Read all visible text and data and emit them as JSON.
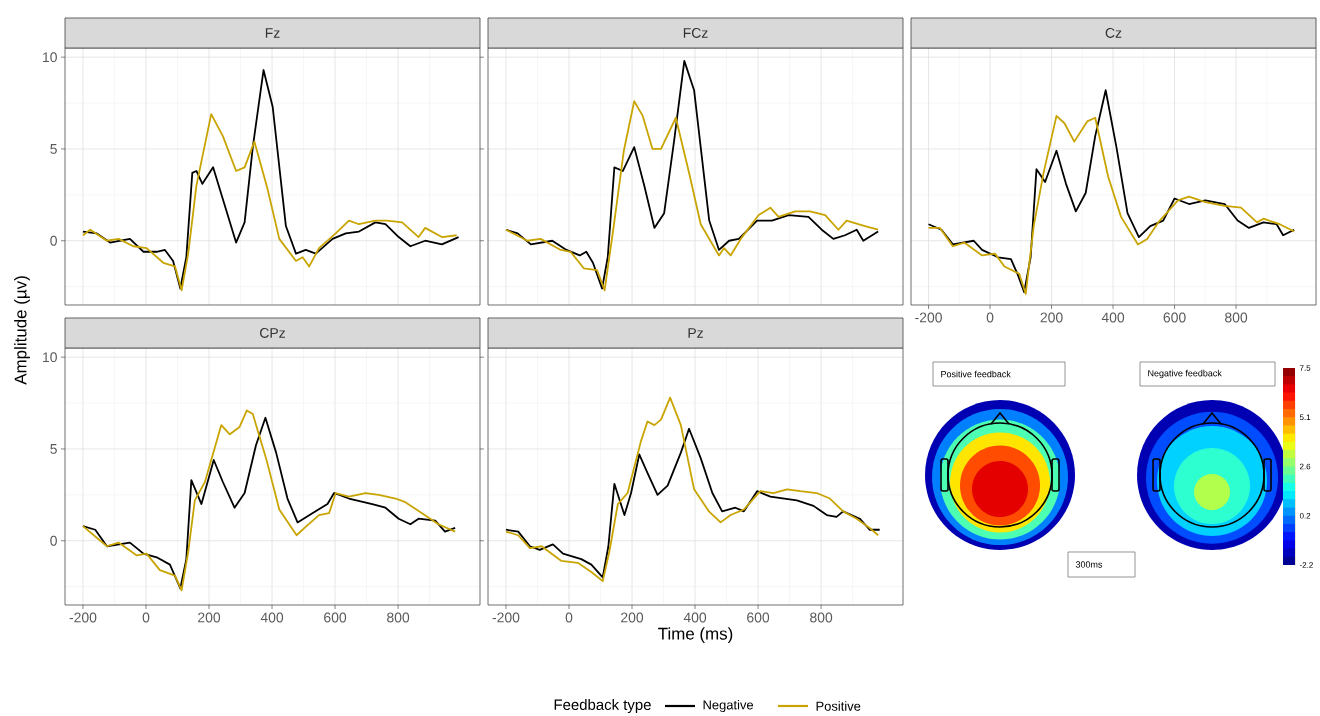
{
  "chart_data": [
    {
      "type": "line",
      "title": "Fz",
      "ylabel": "Amplitude (µv)",
      "legend_title": "Feedback type",
      "legend": "bottom",
      "grid": true,
      "tick_labels": "y",
      "xlim": [
        -257,
        1060
      ],
      "ylim": [
        -3.5,
        10.5
      ],
      "xticks": [
        -200,
        0,
        200,
        400,
        600,
        800
      ],
      "yticks": [
        0,
        5,
        10
      ],
      "series": [
        {
          "name": "Negative",
          "color": "#000000",
          "x": [
            -200,
            -156,
            -114,
            -51,
            -8,
            34,
            60,
            86,
            109,
            128,
            147,
            160,
            179,
            213,
            245,
            286,
            313,
            339,
            373,
            402,
            444,
            476,
            507,
            539,
            592,
            634,
            676,
            728,
            760,
            802,
            839,
            886,
            939,
            992
          ],
          "values": [
            0.5,
            0.4,
            -0.1,
            0.1,
            -0.6,
            -0.6,
            -0.5,
            -1.1,
            -2.6,
            -0.9,
            3.7,
            3.8,
            3.1,
            4.0,
            2.2,
            -0.1,
            1.0,
            5.1,
            9.3,
            7.3,
            0.8,
            -0.7,
            -0.5,
            -0.7,
            0.1,
            0.4,
            0.5,
            1.0,
            0.9,
            0.2,
            -0.3,
            0.0,
            -0.2,
            0.2
          ]
        },
        {
          "name": "Positive",
          "color": "#c9a400",
          "x": [
            -200,
            -177,
            -124,
            -87,
            -40,
            2,
            55,
            92,
            113,
            134,
            160,
            207,
            244,
            286,
            313,
            344,
            386,
            423,
            476,
            497,
            518,
            549,
            602,
            644,
            676,
            728,
            765,
            813,
            865,
            886,
            939,
            986
          ],
          "values": [
            0.3,
            0.6,
            0.0,
            0.1,
            -0.3,
            -0.4,
            -1.2,
            -1.4,
            -2.7,
            -0.7,
            3.0,
            6.9,
            5.7,
            3.8,
            4.0,
            5.4,
            2.8,
            0.1,
            -1.1,
            -0.9,
            -1.4,
            -0.4,
            0.4,
            1.1,
            0.9,
            1.1,
            1.1,
            1.0,
            0.2,
            0.7,
            0.2,
            0.3
          ]
        }
      ]
    },
    {
      "type": "line",
      "title": "FCz",
      "grid": true,
      "tick_labels": false,
      "xlim": [
        -257,
        1060
      ],
      "ylim": [
        -3.5,
        10.5
      ],
      "xticks": [
        -200,
        0,
        200,
        400,
        600,
        800
      ],
      "yticks": [
        0,
        5,
        10
      ],
      "series": [
        {
          "color": "#000000",
          "x": [
            -200,
            -163,
            -121,
            -53,
            -8,
            34,
            55,
            76,
            105,
            123,
            144,
            171,
            207,
            239,
            271,
            302,
            334,
            366,
            397,
            445,
            476,
            508,
            539,
            597,
            644,
            697,
            760,
            802,
            839,
            876,
            913,
            934,
            981
          ],
          "values": [
            0.6,
            0.4,
            -0.2,
            0.0,
            -0.5,
            -0.8,
            -0.6,
            -1.2,
            -2.6,
            -0.9,
            4.0,
            3.8,
            5.1,
            3.0,
            0.7,
            1.5,
            5.5,
            9.8,
            8.2,
            1.1,
            -0.5,
            0.0,
            0.1,
            1.1,
            1.1,
            1.4,
            1.3,
            0.6,
            0.1,
            0.3,
            0.6,
            0.0,
            0.5
          ]
        },
        {
          "color": "#c9a400",
          "x": [
            -200,
            -132,
            -90,
            -26,
            5,
            47,
            89,
            113,
            142,
            174,
            207,
            234,
            265,
            292,
            339,
            381,
            418,
            476,
            492,
            513,
            545,
            602,
            639,
            665,
            718,
            765,
            813,
            855,
            881,
            939,
            981
          ],
          "values": [
            0.6,
            0.0,
            0.1,
            -0.5,
            -0.6,
            -1.5,
            -1.6,
            -2.7,
            0.8,
            4.9,
            7.6,
            6.8,
            5.0,
            5.0,
            6.7,
            3.7,
            0.9,
            -0.8,
            -0.4,
            -0.8,
            0.1,
            1.4,
            1.8,
            1.3,
            1.6,
            1.6,
            1.4,
            0.6,
            1.1,
            0.8,
            0.6
          ]
        }
      ]
    },
    {
      "type": "line",
      "title": "Cz",
      "grid": true,
      "tick_labels": "x",
      "xlim": [
        -257,
        1060
      ],
      "ylim": [
        -3.5,
        10.5
      ],
      "xticks": [
        -200,
        0,
        200,
        400,
        600,
        800
      ],
      "yticks": [
        0,
        5,
        10
      ],
      "series": [
        {
          "color": "#000000",
          "x": [
            -200,
            -158,
            -121,
            -53,
            -26,
            26,
            68,
            89,
            111,
            132,
            151,
            179,
            216,
            247,
            279,
            311,
            342,
            376,
            411,
            447,
            484,
            521,
            563,
            600,
            647,
            700,
            763,
            805,
            842,
            889,
            932,
            953,
            989
          ],
          "values": [
            0.9,
            0.6,
            -0.2,
            0.0,
            -0.5,
            -0.9,
            -1.0,
            -1.8,
            -2.8,
            -0.9,
            3.9,
            3.2,
            4.9,
            3.1,
            1.6,
            2.6,
            5.7,
            8.2,
            5.1,
            1.5,
            0.2,
            0.8,
            1.1,
            2.3,
            2.0,
            2.2,
            2.0,
            1.1,
            0.7,
            1.0,
            0.9,
            0.3,
            0.6
          ]
        },
        {
          "color": "#c9a400",
          "x": [
            -200,
            -163,
            -121,
            -84,
            -26,
            16,
            47,
            95,
            116,
            142,
            174,
            216,
            242,
            274,
            316,
            342,
            384,
            426,
            481,
            511,
            547,
            611,
            647,
            700,
            763,
            816,
            868,
            889,
            942,
            989
          ],
          "values": [
            0.7,
            0.7,
            -0.3,
            -0.1,
            -0.8,
            -0.7,
            -1.4,
            -1.8,
            -2.9,
            0.8,
            3.7,
            6.8,
            6.4,
            5.4,
            6.5,
            6.7,
            3.5,
            1.3,
            -0.2,
            0.1,
            1.0,
            2.2,
            2.4,
            2.1,
            1.9,
            1.8,
            1.0,
            1.2,
            0.9,
            0.5
          ]
        }
      ]
    },
    {
      "type": "line",
      "title": "CPz",
      "grid": true,
      "xlim": [
        -257,
        1060
      ],
      "ylim": [
        -3.5,
        10.5
      ],
      "xticks": [
        -200,
        0,
        200,
        400,
        600,
        800
      ],
      "yticks": [
        0,
        5,
        10
      ],
      "series": [
        {
          "color": "#000000",
          "x": [
            -200,
            -161,
            -124,
            -51,
            -8,
            34,
            76,
            109,
            128,
            144,
            176,
            215,
            244,
            281,
            313,
            349,
            379,
            413,
            449,
            481,
            528,
            576,
            597,
            644,
            718,
            760,
            802,
            839,
            865,
            918,
            949,
            981
          ],
          "values": [
            0.8,
            0.6,
            -0.3,
            -0.1,
            -0.7,
            -0.9,
            -1.3,
            -2.6,
            -1.0,
            3.3,
            2.0,
            4.4,
            3.2,
            1.8,
            2.6,
            5.2,
            6.7,
            4.8,
            2.3,
            1.0,
            1.5,
            2.0,
            2.6,
            2.3,
            2.0,
            1.8,
            1.2,
            0.9,
            1.2,
            1.1,
            0.5,
            0.7
          ]
        },
        {
          "color": "#c9a400",
          "x": [
            -200,
            -124,
            -87,
            -29,
            2,
            44,
            92,
            113,
            134,
            155,
            187,
            239,
            266,
            297,
            320,
            339,
            381,
            423,
            478,
            503,
            549,
            581,
            602,
            644,
            697,
            739,
            792,
            823,
            876,
            928,
            981
          ],
          "values": [
            0.8,
            -0.3,
            -0.1,
            -0.8,
            -0.7,
            -1.6,
            -1.9,
            -2.7,
            -0.6,
            2.2,
            3.2,
            6.3,
            5.8,
            6.2,
            7.1,
            6.9,
            4.5,
            1.7,
            0.3,
            0.7,
            1.4,
            1.5,
            2.6,
            2.4,
            2.6,
            2.5,
            2.3,
            2.1,
            1.5,
            0.9,
            0.5
          ]
        }
      ]
    },
    {
      "type": "line",
      "title": "Pz",
      "xlabel": "Time (ms)",
      "grid": true,
      "tick_labels": "x",
      "xlim": [
        -257,
        1060
      ],
      "ylim": [
        -3.5,
        10.5
      ],
      "xticks": [
        -200,
        0,
        200,
        400,
        600,
        800
      ],
      "yticks": [
        0,
        5,
        10
      ],
      "series": [
        {
          "color": "#000000",
          "x": [
            -200,
            -161,
            -124,
            -93,
            -51,
            -19,
            39,
            71,
            107,
            125,
            144,
            176,
            197,
            223,
            249,
            281,
            313,
            355,
            381,
            418,
            455,
            486,
            528,
            555,
            597,
            639,
            723,
            776,
            818,
            849,
            870,
            923,
            954,
            986
          ],
          "values": [
            0.6,
            0.5,
            -0.3,
            -0.5,
            -0.2,
            -0.7,
            -1.0,
            -1.3,
            -2.0,
            -0.3,
            3.1,
            1.4,
            2.6,
            4.7,
            3.7,
            2.5,
            3.0,
            4.8,
            6.1,
            4.5,
            2.6,
            1.6,
            1.8,
            1.6,
            2.7,
            2.4,
            2.2,
            1.9,
            1.4,
            1.3,
            1.6,
            1.2,
            0.6,
            0.6
          ]
        },
        {
          "color": "#c9a400",
          "x": [
            -200,
            -161,
            -124,
            -87,
            -24,
            28,
            71,
            107,
            128,
            155,
            186,
            228,
            249,
            271,
            292,
            321,
            355,
            397,
            444,
            481,
            513,
            555,
            607,
            649,
            692,
            734,
            786,
            828,
            870,
            913,
            954,
            981
          ],
          "values": [
            0.5,
            0.3,
            -0.4,
            -0.3,
            -1.1,
            -1.2,
            -1.7,
            -2.2,
            -0.6,
            2.0,
            2.6,
            5.4,
            6.5,
            6.3,
            6.6,
            7.8,
            6.3,
            2.8,
            1.6,
            1.0,
            1.4,
            1.7,
            2.7,
            2.6,
            2.8,
            2.7,
            2.6,
            2.3,
            1.6,
            1.2,
            0.7,
            0.3
          ]
        }
      ]
    },
    {
      "type": "other",
      "annotations": [
        "Positive feedback",
        "Negative feedback",
        "300ms",
        "7.5",
        "5.1",
        "2.6",
        "0.2",
        "-2.2"
      ]
    }
  ]
}
